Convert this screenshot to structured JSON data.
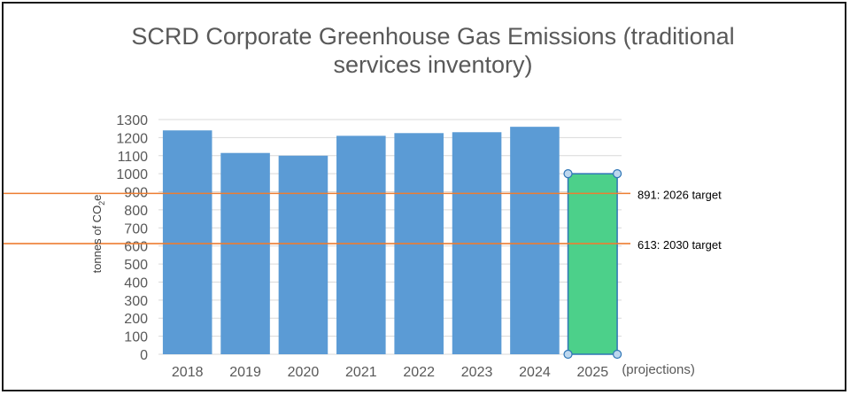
{
  "chart_data": {
    "type": "bar",
    "title_line1": "SCRD Corporate Greenhouse Gas Emissions (traditional",
    "title_line2": "services inventory)",
    "ylabel_main": "tonnes of CO",
    "ylabel_sub": "2",
    "ylabel_end": "e",
    "categories": [
      "2018",
      "2019",
      "2020",
      "2021",
      "2022",
      "2023",
      "2024",
      "2025"
    ],
    "values": [
      1240,
      1115,
      1100,
      1210,
      1225,
      1230,
      1260,
      1000
    ],
    "projection_category": "2025",
    "projection_note": "(projections)",
    "ylim": [
      0,
      1300
    ],
    "yticks": [
      0,
      100,
      200,
      300,
      400,
      500,
      600,
      700,
      800,
      900,
      1000,
      1100,
      1200,
      1300
    ],
    "grid": true,
    "targets": [
      {
        "value": 891,
        "label": "891: 2026 target"
      },
      {
        "value": 613,
        "label": "613: 2030 target"
      }
    ],
    "colors": {
      "bar": "#5b9bd5",
      "projection_fill": "#4cd08a",
      "projection_border": "#2e75b6",
      "target_line": "#ed7d31",
      "grid": "#d9d9d9"
    }
  }
}
